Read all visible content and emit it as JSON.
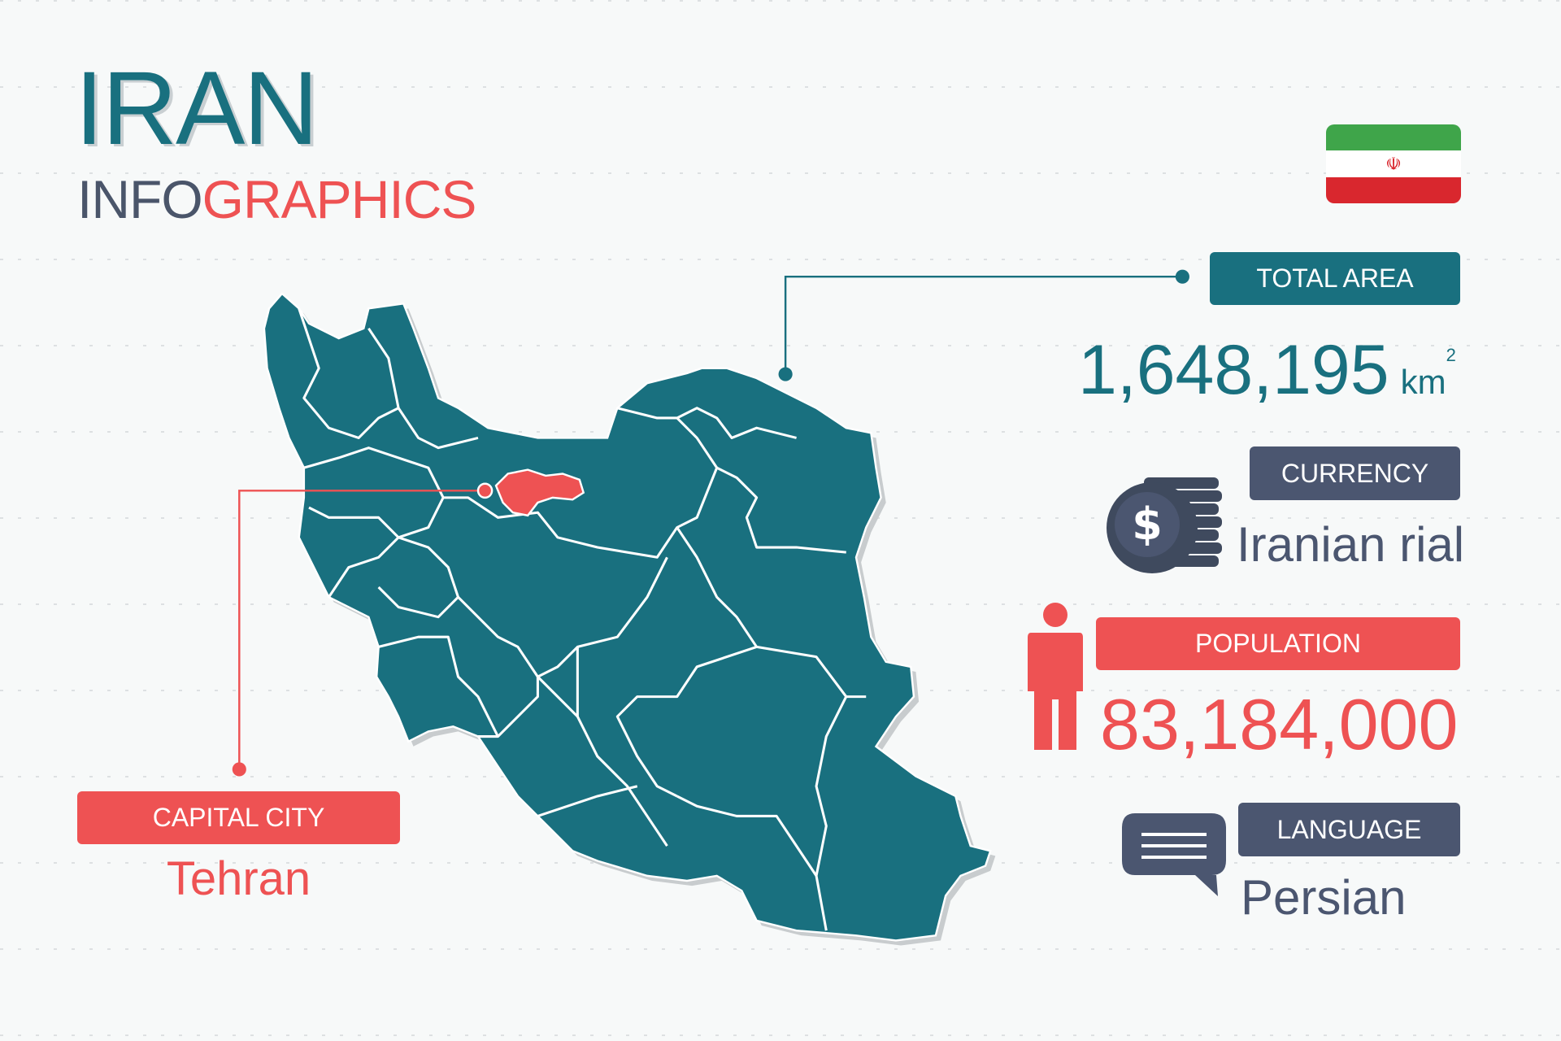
{
  "header": {
    "title": "IRAN",
    "subtitle_part1": "INFO",
    "subtitle_part2": "GRAPHICS"
  },
  "flag": {
    "country": "Iran",
    "colors": [
      "#3fa54a",
      "#ffffff",
      "#d9272e"
    ]
  },
  "total_area": {
    "label": "TOTAL  AREA",
    "value": "1,648,195",
    "unit": "km",
    "unit_sup": "2"
  },
  "currency": {
    "label": "CURRENCY",
    "value": "Iranian rial",
    "icon": "coin-dollar-icon"
  },
  "population": {
    "label": "POPULATION",
    "value": "83,184,000",
    "icon": "person-icon"
  },
  "language": {
    "label": "LANGUAGE",
    "value": "Persian",
    "icon": "chat-bubble-icon"
  },
  "capital": {
    "label": "CAPITAL CITY",
    "value": "Tehran"
  },
  "colors": {
    "teal": "#19707f",
    "red": "#ee5253",
    "slate": "#4b5670",
    "background": "#f7f9f9"
  }
}
